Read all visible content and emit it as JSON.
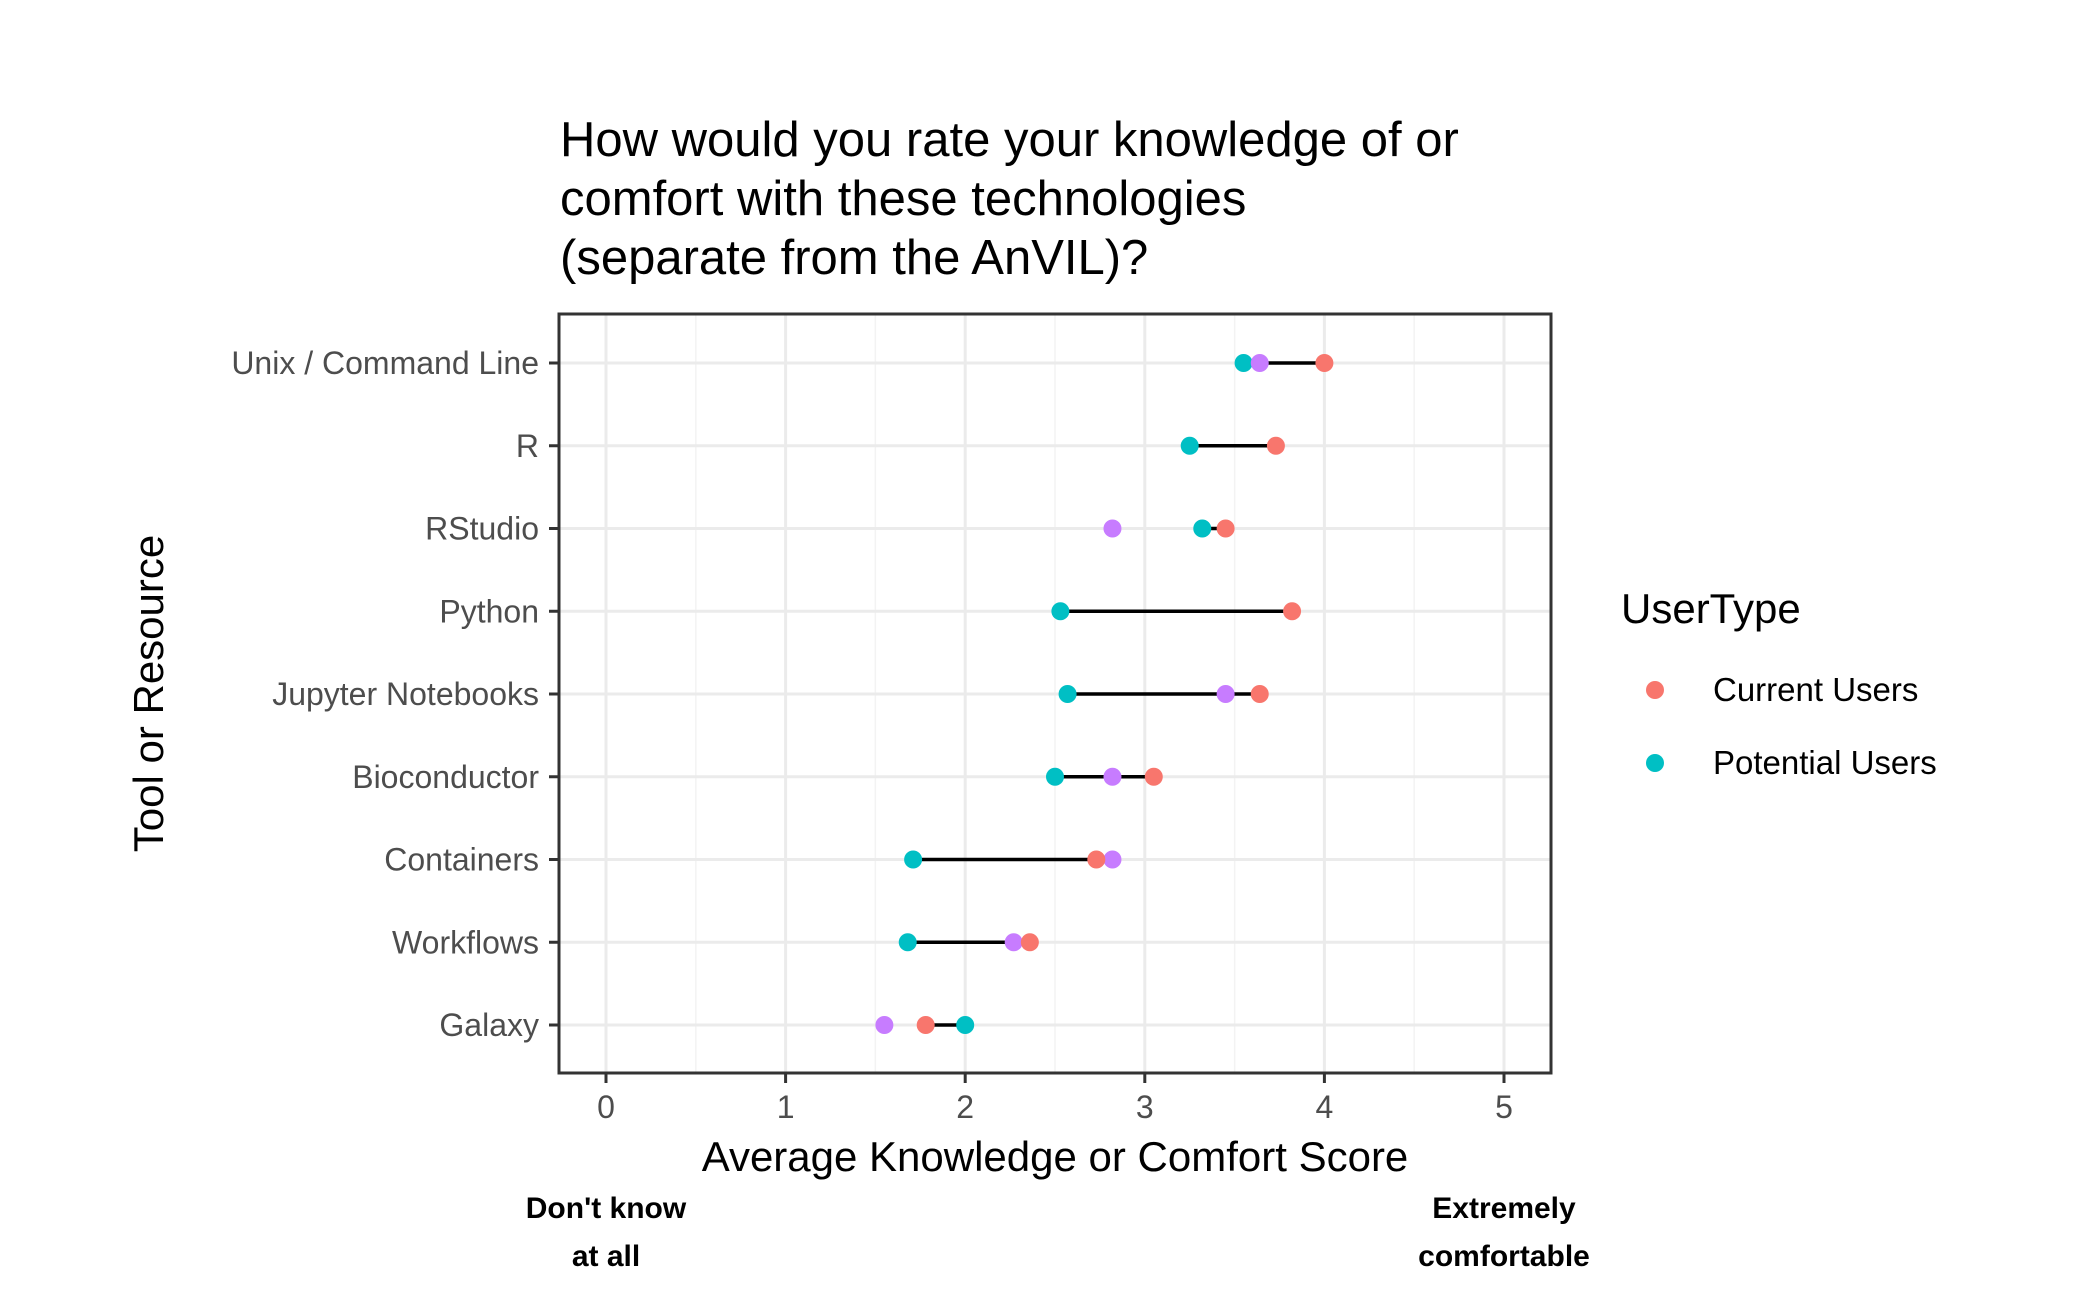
{
  "chart_data": {
    "type": "dumbbell",
    "title_lines": [
      "How would you rate your knowledge of or",
      "comfort with these technologies",
      "(separate from the AnVIL)?"
    ],
    "xlabel": "Average Knowledge or Comfort Score",
    "ylabel": "Tool or Resource",
    "xlim": [
      -0.25,
      5.25
    ],
    "x_ticks": [
      0,
      1,
      2,
      3,
      4,
      5
    ],
    "grid": true,
    "categories": [
      "Unix / Command Line",
      "R",
      "RStudio",
      "Python",
      "Jupyter Notebooks",
      "Bioconductor",
      "Containers",
      "Workflows",
      "Galaxy"
    ],
    "series": [
      {
        "name": "Current Users",
        "color": "#F8766D",
        "values": [
          4.0,
          3.73,
          3.45,
          3.82,
          3.64,
          3.05,
          2.73,
          2.36,
          1.78
        ]
      },
      {
        "name": "Potential Users",
        "color": "#00BFC4",
        "values": [
          3.55,
          3.25,
          3.32,
          2.53,
          2.57,
          2.5,
          1.71,
          1.68,
          2.0
        ]
      },
      {
        "color": "#C77CFF",
        "values": [
          3.64,
          null,
          2.82,
          null,
          3.45,
          2.82,
          2.82,
          2.27,
          1.55
        ]
      }
    ],
    "legend": {
      "title": "UserType",
      "position": "right",
      "entries": [
        {
          "label": "Current Users",
          "color": "#F8766D"
        },
        {
          "label": "Potential Users",
          "color": "#00BFC4"
        }
      ]
    },
    "scale_annotations": [
      {
        "x": 0,
        "lines": [
          "Don't know",
          "at all"
        ]
      },
      {
        "x": 5,
        "lines": [
          "Extremely",
          "comfortable"
        ]
      }
    ]
  }
}
